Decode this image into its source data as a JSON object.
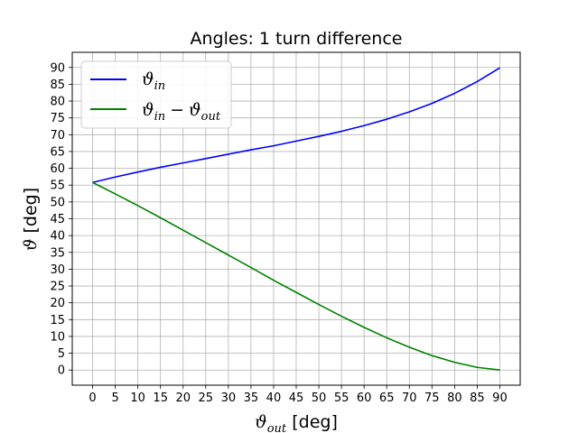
{
  "chart_data": {
    "type": "line",
    "title": "Angles: 1 turn difference",
    "xlabel": {
      "symbol": "ϑ",
      "sub": "out",
      "unit": "[deg]"
    },
    "ylabel": {
      "symbol": "ϑ",
      "unit": "[deg]"
    },
    "xlim": [
      -4.5,
      94.5
    ],
    "ylim": [
      -4.5,
      94.5
    ],
    "xticks": [
      0,
      5,
      10,
      15,
      20,
      25,
      30,
      35,
      40,
      45,
      50,
      55,
      60,
      65,
      70,
      75,
      80,
      85,
      90
    ],
    "yticks": [
      0,
      5,
      10,
      15,
      20,
      25,
      30,
      35,
      40,
      45,
      50,
      55,
      60,
      65,
      70,
      75,
      80,
      85,
      90
    ],
    "grid": true,
    "legend_placement": "top-left",
    "series": [
      {
        "legend": {
          "symbol": "ϑ",
          "sub": "in"
        },
        "color": "#0000ff",
        "x": [
          0,
          5,
          10,
          15,
          20,
          25,
          30,
          35,
          40,
          45,
          50,
          55,
          60,
          65,
          70,
          75,
          80,
          85,
          90
        ],
        "y": [
          55.8,
          57.4,
          58.9,
          60.3,
          61.6,
          62.9,
          64.2,
          65.5,
          66.7,
          68.1,
          69.5,
          71.0,
          72.7,
          74.6,
          76.8,
          79.3,
          82.3,
          85.8,
          89.9
        ]
      },
      {
        "legend": {
          "symbol": "ϑ",
          "sub": "in",
          "minus": "−",
          "symbol2": "ϑ",
          "sub2": "out"
        },
        "color": "#008000",
        "x": [
          0,
          5,
          10,
          15,
          20,
          25,
          30,
          35,
          40,
          45,
          50,
          55,
          60,
          65,
          70,
          75,
          80,
          85,
          90
        ],
        "y": [
          55.8,
          52.4,
          48.9,
          45.3,
          41.6,
          37.9,
          34.2,
          30.5,
          26.7,
          23.1,
          19.5,
          16.0,
          12.7,
          9.6,
          6.8,
          4.3,
          2.3,
          0.8,
          0.0
        ]
      }
    ]
  }
}
